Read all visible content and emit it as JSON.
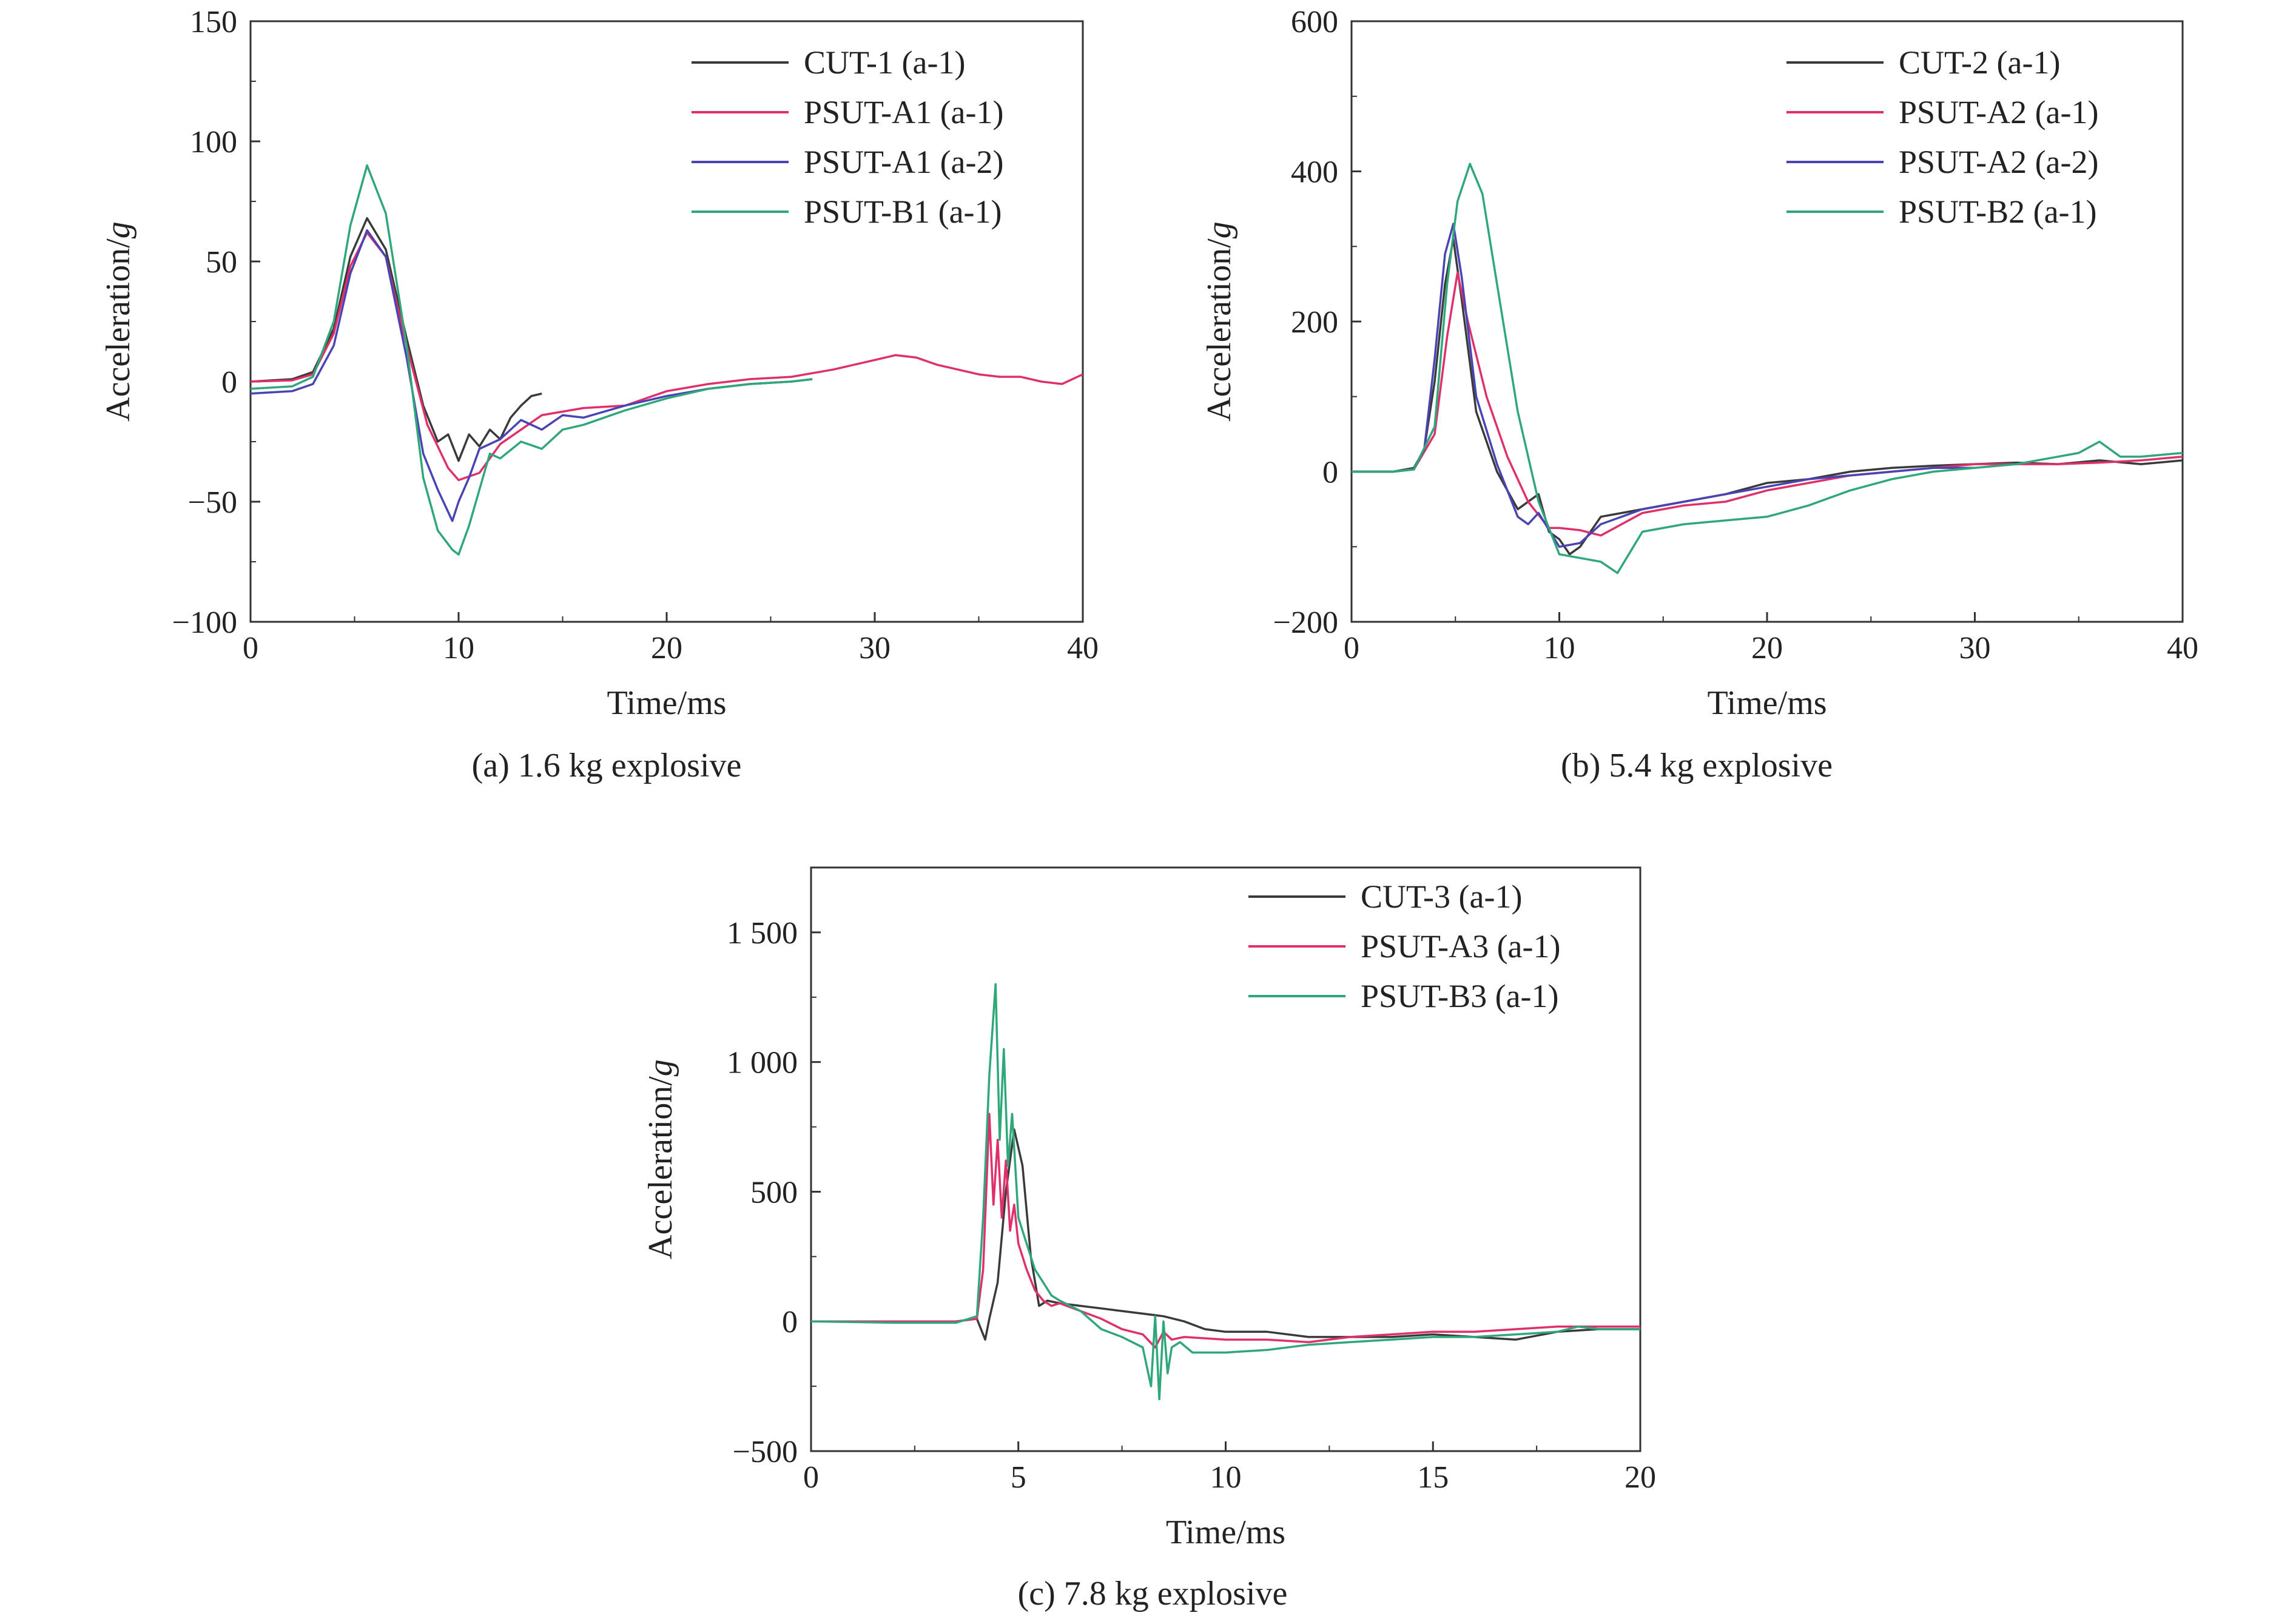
{
  "colors": {
    "cut": "#3a3a3a",
    "psut_a1": "#e0306a",
    "psut_a2": "#4a43b4",
    "psut_b": "#2fa77a",
    "axis": "#333333"
  },
  "captions": {
    "a": "(a) 1.6 kg explosive",
    "b": "(b) 5.4 kg explosive",
    "c": "(c) 7.8 kg explosive"
  },
  "chart_data": [
    {
      "type": "line",
      "id": "a",
      "xlabel": "Time/ms",
      "ylabel": "Acceleration/g",
      "xlim": [
        0,
        40
      ],
      "ylim": [
        -100,
        150
      ],
      "xticks": [
        0,
        10,
        20,
        30,
        40
      ],
      "yticks": [
        -100,
        -50,
        0,
        50,
        100,
        150
      ],
      "xtick_labels": [
        "0",
        "10",
        "20",
        "30",
        "40"
      ],
      "ytick_labels": [
        "−100",
        "−50",
        "0",
        "50",
        "100",
        "150"
      ],
      "legend_position": "top-right",
      "series": [
        {
          "name": "CUT-1 (a-1)",
          "color_key": "cut",
          "x": [
            0,
            2,
            3,
            4,
            4.8,
            5.6,
            6.5,
            7.5,
            8.3,
            9,
            9.5,
            10,
            10.5,
            11,
            11.5,
            12,
            12.5,
            13,
            13.5,
            14
          ],
          "y": [
            0,
            1,
            4,
            22,
            52,
            68,
            55,
            18,
            -10,
            -25,
            -22,
            -33,
            -22,
            -27,
            -20,
            -24,
            -15,
            -10,
            -6,
            -5
          ]
        },
        {
          "name": "PSUT-A1 (a-1)",
          "color_key": "psut_a1",
          "x": [
            0,
            2,
            3,
            4,
            4.8,
            5.6,
            6.5,
            7.5,
            8.5,
            9.5,
            10,
            11,
            12,
            14,
            16,
            18,
            20,
            22,
            24,
            26,
            28,
            30,
            31,
            32,
            33,
            34,
            35,
            36,
            37,
            38,
            39,
            40
          ],
          "y": [
            0,
            0.5,
            3,
            20,
            48,
            62,
            52,
            15,
            -18,
            -36,
            -41,
            -38,
            -26,
            -14,
            -11,
            -10,
            -4,
            -1,
            1,
            2,
            5,
            9,
            11,
            10,
            7,
            5,
            3,
            2,
            2,
            0,
            -1,
            3
          ]
        },
        {
          "name": "PSUT-A1 (a-2)",
          "color_key": "psut_a2",
          "x": [
            0,
            2,
            3,
            4,
            4.8,
            5.6,
            6.5,
            7.5,
            8.3,
            9,
            9.7,
            10,
            10.5,
            11,
            12,
            13,
            14,
            15,
            16,
            18,
            20,
            22,
            24,
            26,
            27
          ],
          "y": [
            -5,
            -4,
            -1,
            15,
            45,
            63,
            52,
            10,
            -30,
            -45,
            -58,
            -50,
            -40,
            -28,
            -24,
            -16,
            -20,
            -14,
            -15,
            -10,
            -6,
            -3,
            -1,
            0,
            1
          ]
        },
        {
          "name": "PSUT-B1 (a-1)",
          "color_key": "psut_b",
          "x": [
            0,
            2,
            3,
            4,
            4.8,
            5.6,
            6.5,
            7.5,
            8.3,
            9,
            9.7,
            10,
            10.5,
            11,
            11.5,
            12,
            13,
            14,
            15,
            16,
            18,
            20,
            22,
            24,
            26,
            27
          ],
          "y": [
            -3,
            -2,
            2,
            25,
            65,
            90,
            70,
            15,
            -40,
            -62,
            -70,
            -72,
            -60,
            -45,
            -30,
            -32,
            -25,
            -28,
            -20,
            -18,
            -12,
            -7,
            -3,
            -1,
            0,
            1
          ]
        }
      ]
    },
    {
      "type": "line",
      "id": "b",
      "xlabel": "Time/ms",
      "ylabel": "Acceleration/g",
      "xlim": [
        0,
        40
      ],
      "ylim": [
        -200,
        600
      ],
      "xticks": [
        0,
        10,
        20,
        30,
        40
      ],
      "yticks": [
        -200,
        0,
        200,
        400,
        600
      ],
      "xtick_labels": [
        "0",
        "10",
        "20",
        "30",
        "40"
      ],
      "ytick_labels": [
        "−200",
        "0",
        "200",
        "400",
        "600"
      ],
      "legend_position": "top-right",
      "series": [
        {
          "name": "CUT-2 (a-1)",
          "color_key": "cut",
          "x": [
            0,
            2,
            3,
            3.5,
            4,
            4.5,
            4.9,
            5.3,
            6,
            7,
            8,
            9,
            9.5,
            10,
            10.5,
            11,
            12,
            13,
            14,
            16,
            18,
            20,
            22,
            24,
            26,
            28,
            30,
            32,
            34,
            36,
            38,
            40
          ],
          "y": [
            0,
            0,
            5,
            30,
            120,
            250,
            310,
            230,
            80,
            0,
            -50,
            -30,
            -80,
            -90,
            -110,
            -100,
            -60,
            -55,
            -50,
            -40,
            -30,
            -15,
            -10,
            0,
            5,
            8,
            10,
            12,
            10,
            15,
            10,
            15
          ]
        },
        {
          "name": "PSUT-A2 (a-1)",
          "color_key": "psut_a1",
          "x": [
            0,
            2,
            3,
            4,
            4.6,
            5.1,
            5.6,
            6.5,
            7.5,
            8.5,
            9.5,
            10,
            11,
            12,
            13,
            14,
            16,
            18,
            20,
            22,
            24,
            26,
            28,
            30,
            32,
            34,
            36,
            38,
            40
          ],
          "y": [
            0,
            0,
            3,
            50,
            180,
            265,
            200,
            100,
            20,
            -40,
            -75,
            -75,
            -78,
            -85,
            -70,
            -55,
            -45,
            -40,
            -25,
            -15,
            -5,
            0,
            5,
            10,
            10,
            10,
            12,
            15,
            20
          ]
        },
        {
          "name": "PSUT-A2 (a-2)",
          "color_key": "psut_a2",
          "x": [
            0,
            2,
            3,
            3.5,
            4,
            4.5,
            4.9,
            5.3,
            6,
            7,
            8,
            8.5,
            9,
            10,
            11,
            12,
            13,
            14,
            16,
            18,
            20,
            22,
            24,
            26,
            28,
            30
          ],
          "y": [
            0,
            0,
            3,
            30,
            150,
            290,
            330,
            260,
            100,
            10,
            -60,
            -70,
            -55,
            -100,
            -95,
            -70,
            -60,
            -50,
            -40,
            -30,
            -20,
            -10,
            -5,
            0,
            5,
            5
          ]
        },
        {
          "name": "PSUT-B2 (a-1)",
          "color_key": "psut_b",
          "x": [
            0,
            2,
            3,
            4,
            4.6,
            5.1,
            5.7,
            6.3,
            7,
            8,
            9,
            10,
            11,
            12,
            12.8,
            14,
            16,
            18,
            20,
            22,
            24,
            26,
            28,
            30,
            32,
            34,
            35,
            36,
            37,
            38,
            40
          ],
          "y": [
            0,
            0,
            3,
            60,
            250,
            360,
            410,
            370,
            250,
            80,
            -40,
            -110,
            -115,
            -120,
            -135,
            -80,
            -70,
            -65,
            -60,
            -45,
            -25,
            -10,
            0,
            5,
            10,
            20,
            25,
            40,
            20,
            20,
            25
          ]
        }
      ]
    },
    {
      "type": "line",
      "id": "c",
      "xlabel": "Time/ms",
      "ylabel": "Acceleration/g",
      "xlim": [
        0,
        20
      ],
      "ylim": [
        -500,
        1750
      ],
      "xticks": [
        0,
        5,
        10,
        15,
        20
      ],
      "yticks": [
        -500,
        0,
        500,
        1000,
        1500
      ],
      "xtick_labels": [
        "0",
        "5",
        "10",
        "15",
        "20"
      ],
      "ytick_labels": [
        "−500",
        "0",
        "500",
        "1 000",
        "1 500"
      ],
      "legend_position": "top-right",
      "series": [
        {
          "name": "CUT-3 (a-1)",
          "color_key": "cut",
          "x": [
            0,
            2,
            3.5,
            4.0,
            4.2,
            4.3,
            4.5,
            4.7,
            4.9,
            5.1,
            5.3,
            5.5,
            5.7,
            6.0,
            6.5,
            7.0,
            7.5,
            8.0,
            8.5,
            9.0,
            9.5,
            10,
            11,
            12,
            13,
            14,
            15,
            16,
            17,
            18,
            19,
            20
          ],
          "y": [
            0,
            0,
            0,
            10,
            -70,
            10,
            150,
            500,
            740,
            600,
            250,
            60,
            80,
            70,
            60,
            50,
            40,
            30,
            20,
            0,
            -30,
            -40,
            -40,
            -60,
            -60,
            -60,
            -50,
            -60,
            -70,
            -40,
            -30,
            -30
          ]
        },
        {
          "name": "PSUT-A3 (a-1)",
          "color_key": "psut_a1",
          "x": [
            0,
            2,
            3.5,
            4.0,
            4.15,
            4.3,
            4.4,
            4.5,
            4.6,
            4.7,
            4.8,
            4.9,
            5.0,
            5.2,
            5.4,
            5.6,
            5.8,
            6.0,
            6.5,
            7.0,
            7.5,
            8.0,
            8.3,
            8.5,
            8.7,
            9.0,
            10,
            11,
            12,
            13,
            14,
            15,
            16,
            17,
            18,
            19,
            20
          ],
          "y": [
            0,
            0,
            0,
            10,
            200,
            800,
            450,
            700,
            400,
            620,
            350,
            450,
            300,
            200,
            120,
            80,
            60,
            70,
            40,
            10,
            -30,
            -50,
            -100,
            -40,
            -70,
            -60,
            -70,
            -70,
            -80,
            -60,
            -50,
            -40,
            -40,
            -30,
            -20,
            -20,
            -20
          ]
        },
        {
          "name": "PSUT-B3 (a-1)",
          "color_key": "psut_b",
          "x": [
            0,
            2,
            3.5,
            4.0,
            4.15,
            4.3,
            4.45,
            4.55,
            4.65,
            4.75,
            4.85,
            5.0,
            5.2,
            5.4,
            5.6,
            5.8,
            6.0,
            6.5,
            7.0,
            7.5,
            8.0,
            8.2,
            8.3,
            8.4,
            8.5,
            8.6,
            8.7,
            8.9,
            9.2,
            10,
            11,
            12,
            13,
            14,
            15,
            16,
            17,
            18,
            18.5,
            19,
            20
          ],
          "y": [
            0,
            -5,
            -5,
            20,
            400,
            950,
            1300,
            700,
            1050,
            600,
            800,
            400,
            300,
            200,
            150,
            100,
            80,
            40,
            -30,
            -60,
            -100,
            -250,
            20,
            -300,
            0,
            -200,
            -100,
            -80,
            -120,
            -120,
            -110,
            -90,
            -80,
            -70,
            -60,
            -60,
            -50,
            -40,
            -20,
            -30,
            -30
          ]
        }
      ]
    }
  ]
}
